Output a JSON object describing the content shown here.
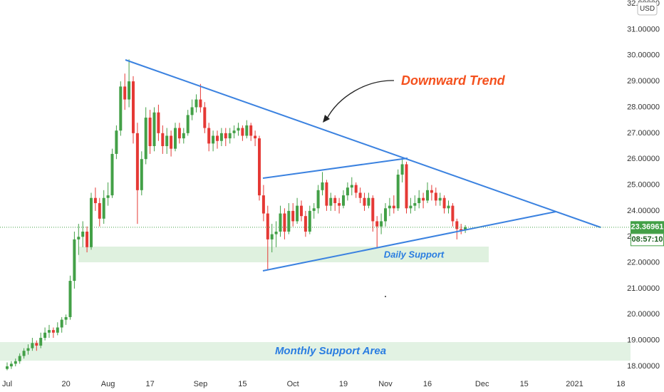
{
  "chart_data": {
    "type": "candlestick",
    "currency": "USD",
    "countdown": "08:57:10",
    "annotations": {
      "trend": "Downward Trend",
      "daily": "Daily Support",
      "monthly": "Monthly Support Area"
    },
    "up_color": "#43a047",
    "down_color": "#e53935",
    "grid": false,
    "ylim": [
      17.56,
      32.14
    ],
    "yticks": [
      {
        "value": 18,
        "label": "18.00000"
      },
      {
        "value": 19,
        "label": "19.00000"
      },
      {
        "value": 20,
        "label": "20.00000"
      },
      {
        "value": 21,
        "label": "21.00000"
      },
      {
        "value": 22,
        "label": "22.00000"
      },
      {
        "value": 23,
        "label": "23.00000"
      },
      {
        "value": 24,
        "label": "24.00000"
      },
      {
        "value": 25,
        "label": "25.00000"
      },
      {
        "value": 26,
        "label": "26.00000"
      },
      {
        "value": 27,
        "label": "27.00000"
      },
      {
        "value": 28,
        "label": "28.00000"
      },
      {
        "value": 29,
        "label": "29.00000"
      },
      {
        "value": 30,
        "label": "30.00000"
      },
      {
        "value": 31,
        "label": "31.00000"
      },
      {
        "value": 32,
        "label": "32.00000"
      }
    ],
    "categories": [
      "Jul",
      null,
      null,
      null,
      null,
      null,
      null,
      null,
      null,
      null,
      null,
      null,
      null,
      null,
      "20",
      null,
      null,
      null,
      null,
      null,
      null,
      null,
      null,
      null,
      "Aug",
      null,
      null,
      null,
      null,
      null,
      null,
      null,
      null,
      null,
      "17",
      null,
      null,
      null,
      null,
      null,
      null,
      null,
      null,
      null,
      null,
      null,
      "Sep",
      null,
      null,
      null,
      null,
      null,
      null,
      null,
      null,
      null,
      "15",
      null,
      null,
      null,
      null,
      null,
      null,
      null,
      null,
      null,
      null,
      null,
      "Oct",
      null,
      null,
      null,
      null,
      null,
      null,
      null,
      null,
      null,
      null,
      null,
      "19",
      null,
      null,
      null,
      null,
      null,
      null,
      null,
      null,
      null,
      "Nov",
      null,
      null,
      null,
      null,
      null,
      null,
      null,
      null,
      null,
      "16",
      null,
      null,
      null,
      null,
      null,
      null,
      null,
      null,
      null,
      null,
      null,
      null,
      "Dec",
      null,
      null,
      null,
      null,
      null,
      null,
      null,
      null,
      null,
      "15",
      null,
      null,
      null,
      null,
      null,
      null,
      null,
      null,
      null,
      null,
      null,
      "2021",
      null,
      null,
      null,
      null,
      null,
      null,
      null,
      null,
      null,
      null,
      "18",
      null
    ],
    "ohlc": [
      [
        17.9,
        18.15,
        17.85,
        18.0
      ],
      [
        18.0,
        18.2,
        17.9,
        18.1
      ],
      [
        18.1,
        18.3,
        18.0,
        18.2
      ],
      [
        18.2,
        18.5,
        18.1,
        18.4
      ],
      [
        18.4,
        18.7,
        18.3,
        18.6
      ],
      [
        18.6,
        18.85,
        18.45,
        18.7
      ],
      [
        18.7,
        19.1,
        18.6,
        18.9
      ],
      [
        18.9,
        19.0,
        18.6,
        18.8
      ],
      [
        18.8,
        19.3,
        18.7,
        19.1
      ],
      [
        19.1,
        19.5,
        19.0,
        19.3
      ],
      [
        19.3,
        19.6,
        19.1,
        19.4
      ],
      [
        19.4,
        19.5,
        19.1,
        19.3
      ],
      [
        19.3,
        19.7,
        19.2,
        19.5
      ],
      [
        19.5,
        19.9,
        19.3,
        19.8
      ],
      [
        19.8,
        20.0,
        19.6,
        19.9
      ],
      [
        19.9,
        21.5,
        19.8,
        21.3
      ],
      [
        21.3,
        23.2,
        21.0,
        22.9
      ],
      [
        22.9,
        23.5,
        22.3,
        23.0
      ],
      [
        23.0,
        23.6,
        22.6,
        23.2
      ],
      [
        23.2,
        23.4,
        22.4,
        22.6
      ],
      [
        22.6,
        24.7,
        22.5,
        24.5
      ],
      [
        24.5,
        24.9,
        24.0,
        24.3
      ],
      [
        24.3,
        24.5,
        23.4,
        23.7
      ],
      [
        23.7,
        24.8,
        23.5,
        24.5
      ],
      [
        24.5,
        25.1,
        24.2,
        24.6
      ],
      [
        24.6,
        26.4,
        24.5,
        26.2
      ],
      [
        26.2,
        27.3,
        26.0,
        27.1
      ],
      [
        27.1,
        29.0,
        26.9,
        28.8
      ],
      [
        28.8,
        29.3,
        27.9,
        28.3
      ],
      [
        28.3,
        29.85,
        28.0,
        29.0
      ],
      [
        29.0,
        29.2,
        26.6,
        27.0
      ],
      [
        27.0,
        27.4,
        23.5,
        24.8
      ],
      [
        24.8,
        26.3,
        24.6,
        26.0
      ],
      [
        26.0,
        28.0,
        25.8,
        27.6
      ],
      [
        27.6,
        27.9,
        26.2,
        26.5
      ],
      [
        26.5,
        28.0,
        26.3,
        27.8
      ],
      [
        27.8,
        28.1,
        26.7,
        27.0
      ],
      [
        27.0,
        27.3,
        26.2,
        26.5
      ],
      [
        26.5,
        27.2,
        26.2,
        26.9
      ],
      [
        26.9,
        27.1,
        26.1,
        26.4
      ],
      [
        26.4,
        27.4,
        26.3,
        27.2
      ],
      [
        27.2,
        27.4,
        26.6,
        26.8
      ],
      [
        26.8,
        27.2,
        26.6,
        27.0
      ],
      [
        27.0,
        27.9,
        26.9,
        27.7
      ],
      [
        27.7,
        28.3,
        27.5,
        28.0
      ],
      [
        28.0,
        28.5,
        27.8,
        28.3
      ],
      [
        28.3,
        28.9,
        27.8,
        28.0
      ],
      [
        28.0,
        28.2,
        27.0,
        27.2
      ],
      [
        27.2,
        27.4,
        26.3,
        26.6
      ],
      [
        26.6,
        27.1,
        26.3,
        26.9
      ],
      [
        26.9,
        27.1,
        26.4,
        26.7
      ],
      [
        26.7,
        27.2,
        26.5,
        27.0
      ],
      [
        27.0,
        27.2,
        26.5,
        26.8
      ],
      [
        26.8,
        27.2,
        26.6,
        27.0
      ],
      [
        27.0,
        27.3,
        26.8,
        27.1
      ],
      [
        27.1,
        27.4,
        26.9,
        27.2
      ],
      [
        27.2,
        27.3,
        26.7,
        26.9
      ],
      [
        26.9,
        27.5,
        26.8,
        27.3
      ],
      [
        27.3,
        27.4,
        26.7,
        26.9
      ],
      [
        26.9,
        27.1,
        26.5,
        26.8
      ],
      [
        26.8,
        26.9,
        24.4,
        24.6
      ],
      [
        24.6,
        25.0,
        23.6,
        23.9
      ],
      [
        23.9,
        24.2,
        21.7,
        22.9
      ],
      [
        22.9,
        23.5,
        22.4,
        23.1
      ],
      [
        23.1,
        23.6,
        22.6,
        23.2
      ],
      [
        23.2,
        24.2,
        23.0,
        23.9
      ],
      [
        23.9,
        24.1,
        22.9,
        23.2
      ],
      [
        23.2,
        24.3,
        23.1,
        24.0
      ],
      [
        24.0,
        24.3,
        23.4,
        23.6
      ],
      [
        23.6,
        24.5,
        23.5,
        24.2
      ],
      [
        24.2,
        24.4,
        23.6,
        23.8
      ],
      [
        23.8,
        24.0,
        23.0,
        23.2
      ],
      [
        23.2,
        24.2,
        23.1,
        24.0
      ],
      [
        24.0,
        24.3,
        23.7,
        24.1
      ],
      [
        24.1,
        25.0,
        23.9,
        24.8
      ],
      [
        24.8,
        25.5,
        24.6,
        25.1
      ],
      [
        25.1,
        25.2,
        24.0,
        24.2
      ],
      [
        24.2,
        24.7,
        24.0,
        24.5
      ],
      [
        24.5,
        24.6,
        24.0,
        24.3
      ],
      [
        24.3,
        24.5,
        23.9,
        24.2
      ],
      [
        24.2,
        24.8,
        24.1,
        24.6
      ],
      [
        24.6,
        25.1,
        24.4,
        24.9
      ],
      [
        24.9,
        25.3,
        24.6,
        25.0
      ],
      [
        25.0,
        25.1,
        24.5,
        24.7
      ],
      [
        24.7,
        24.9,
        24.3,
        24.5
      ],
      [
        24.5,
        24.7,
        24.0,
        24.2
      ],
      [
        24.2,
        24.7,
        24.1,
        24.5
      ],
      [
        24.5,
        24.6,
        23.2,
        23.6
      ],
      [
        23.6,
        23.8,
        22.6,
        23.4
      ],
      [
        23.4,
        23.9,
        23.1,
        23.6
      ],
      [
        23.6,
        24.3,
        23.4,
        24.1
      ],
      [
        24.1,
        24.5,
        23.8,
        24.2
      ],
      [
        24.2,
        24.6,
        23.9,
        24.1
      ],
      [
        24.1,
        25.6,
        24.0,
        25.4
      ],
      [
        25.4,
        26.0,
        25.1,
        25.8
      ],
      [
        25.8,
        25.9,
        23.9,
        24.1
      ],
      [
        24.1,
        24.5,
        23.9,
        24.2
      ],
      [
        24.2,
        24.6,
        24.0,
        24.3
      ],
      [
        24.3,
        24.8,
        24.1,
        24.5
      ],
      [
        24.5,
        24.7,
        24.1,
        24.4
      ],
      [
        24.4,
        25.1,
        24.3,
        24.8
      ],
      [
        24.8,
        25.0,
        24.4,
        24.7
      ],
      [
        24.7,
        24.9,
        24.2,
        24.4
      ],
      [
        24.4,
        24.7,
        24.2,
        24.5
      ],
      [
        24.5,
        24.6,
        23.9,
        24.1
      ],
      [
        24.1,
        24.4,
        23.9,
        24.2
      ],
      [
        24.2,
        24.3,
        23.4,
        23.6
      ],
      [
        23.6,
        23.7,
        22.9,
        23.3
      ],
      [
        23.3,
        23.5,
        23.1,
        23.25
      ],
      [
        23.25,
        23.45,
        23.15,
        23.36961
      ],
      null,
      null,
      null,
      null,
      null,
      null,
      null,
      null,
      null,
      null,
      null,
      null,
      null,
      null,
      null,
      null,
      null,
      null,
      null,
      null,
      null,
      null,
      null,
      null,
      null,
      null,
      null,
      null,
      null,
      null,
      null,
      null,
      null,
      null,
      null,
      null,
      null,
      null
    ]
  }
}
